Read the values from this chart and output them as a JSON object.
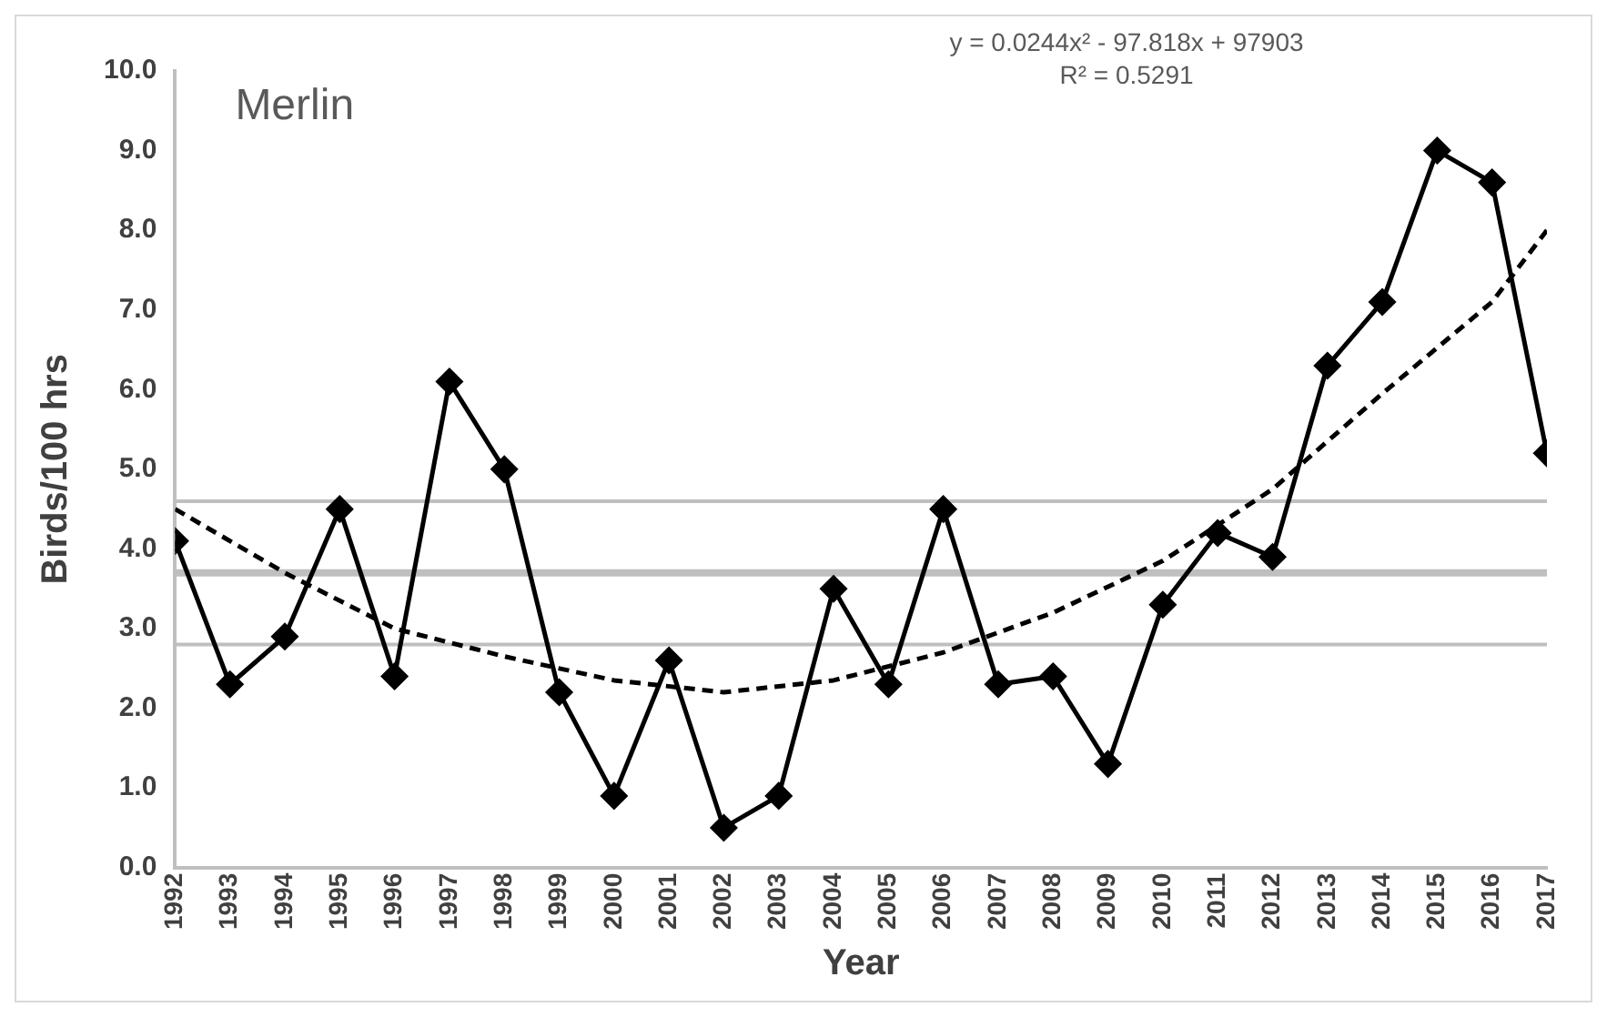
{
  "chart_data": {
    "type": "line",
    "title": "Merlin",
    "xlabel": "Year",
    "ylabel": "Birds/100 hrs",
    "annotations": [
      "y = 0.0244x² - 97.818x + 97903",
      "R² = 0.5291"
    ],
    "x": [
      1992,
      1993,
      1994,
      1995,
      1996,
      1997,
      1998,
      1999,
      2000,
      2001,
      2002,
      2003,
      2004,
      2005,
      2006,
      2007,
      2008,
      2009,
      2010,
      2011,
      2012,
      2013,
      2014,
      2015,
      2016,
      2017
    ],
    "series": [
      {
        "type": "line",
        "color": "#000000",
        "marker": "diamond",
        "line_style": "solid",
        "values": [
          4.1,
          2.3,
          2.9,
          4.5,
          2.4,
          6.1,
          5.0,
          2.2,
          0.9,
          2.6,
          0.5,
          0.9,
          3.5,
          2.3,
          4.5,
          2.3,
          2.4,
          1.3,
          3.3,
          4.2,
          3.9,
          6.3,
          7.1,
          9.0,
          8.6,
          5.2
        ]
      },
      {
        "type": "line",
        "color": "#000000",
        "marker": "none",
        "line_style": "dashed",
        "x": [
          1992,
          1994,
          1996,
          1998,
          2000,
          2002,
          2004,
          2006,
          2008,
          2010,
          2012,
          2014,
          2016,
          2017
        ],
        "values": [
          4.5,
          3.7,
          3.0,
          2.65,
          2.35,
          2.2,
          2.35,
          2.7,
          3.2,
          3.85,
          4.75,
          5.95,
          7.1,
          8.0
        ]
      }
    ],
    "xlim": [
      1992,
      2017
    ],
    "xticks": [
      1992,
      1993,
      1994,
      1995,
      1996,
      1997,
      1998,
      1999,
      2000,
      2001,
      2002,
      2003,
      2004,
      2005,
      2006,
      2007,
      2008,
      2009,
      2010,
      2011,
      2012,
      2013,
      2014,
      2015,
      2016,
      2017
    ],
    "ylim": [
      0,
      10
    ],
    "yticks": [
      {
        "value": 0,
        "label": "0.0"
      },
      {
        "value": 1,
        "label": "1.0"
      },
      {
        "value": 2,
        "label": "2.0"
      },
      {
        "value": 3,
        "label": "3.0"
      },
      {
        "value": 4,
        "label": "4.0"
      },
      {
        "value": 5,
        "label": "5.0"
      },
      {
        "value": 6,
        "label": "6.0"
      },
      {
        "value": 7,
        "label": "7.0"
      },
      {
        "value": 8,
        "label": "8.0"
      },
      {
        "value": 9,
        "label": "9.0"
      },
      {
        "value": 10,
        "label": "10.0"
      }
    ],
    "ref_lines": [
      {
        "axis": "y",
        "value": 4.6,
        "color": "#bfbfbf"
      },
      {
        "axis": "y",
        "value": 3.7,
        "color": "#bfbfbf"
      },
      {
        "axis": "y",
        "value": 2.8,
        "color": "#bfbfbf"
      }
    ],
    "grid": false,
    "legend": false
  }
}
